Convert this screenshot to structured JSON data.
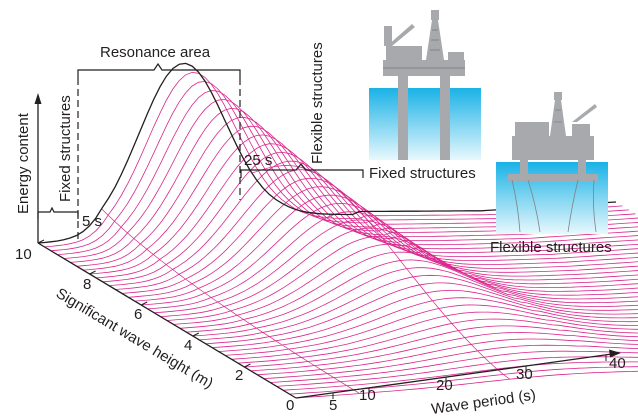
{
  "figure": {
    "axis_energy": "Energy content",
    "axis_wave_height": "Significant wave height (m)",
    "axis_wave_period": "Wave period (s)",
    "height_ticks": [
      "0",
      "2",
      "4",
      "6",
      "8",
      "10"
    ],
    "period_ticks": [
      "5",
      "10",
      "20",
      "30",
      "40"
    ],
    "region_fixed": "Fixed structures",
    "region_resonance": "Resonance area",
    "region_flexible": "Flexible structures",
    "marker_5s": "5 s",
    "marker_25s": "25 s",
    "caption_fixed": "Fixed structures",
    "caption_flexible": "Flexible structures"
  },
  "colors": {
    "curve": "#d9268c",
    "outline": "#231f20",
    "water_top": "#1ab2e6",
    "water_bottom": "#e8f8fd",
    "platform": "#a7a9ac",
    "platform_dark": "#808285"
  }
}
